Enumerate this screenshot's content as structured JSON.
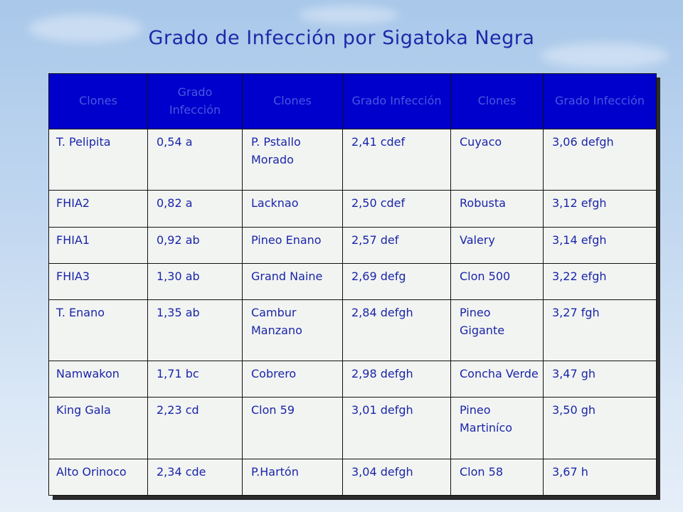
{
  "title": "Grado de Infección por Sigatoka Negra",
  "table": {
    "headers": [
      "Clones",
      "Grado Infección",
      "Clones",
      "Grado Infección",
      "Clones",
      "Grado Infección"
    ],
    "rows": [
      [
        "T. Pelipita",
        "0,54 a",
        "P. Pstallo Morado",
        "2,41 cdef",
        "Cuyaco",
        "3,06 defgh"
      ],
      [
        "FHIA2",
        "0,82 a",
        "Lacknao",
        "2,50 cdef",
        "Robusta",
        "3,12 efgh"
      ],
      [
        "FHIA1",
        "0,92 ab",
        "Pineo Enano",
        "2,57 def",
        "Valery",
        "3,14 efgh"
      ],
      [
        "FHIA3",
        "1,30 ab",
        "Grand Naine",
        "2,69 defg",
        "Clon 500",
        "3,22 efgh"
      ],
      [
        "T. Enano",
        "1,35 ab",
        "Cambur Manzano",
        "2,84 defgh",
        "Pineo Gigante",
        "3,27 fgh"
      ],
      [
        "Namwakon",
        "1,71 bc",
        "Cobrero",
        "2,98 defgh",
        "Concha Verde",
        "3,47 gh"
      ],
      [
        "King Gala",
        "2,23 cd",
        "Clon 59",
        "3,01 defgh",
        "Pineo Martiníco",
        "3,50 gh"
      ],
      [
        "Alto Orinoco",
        "2,34 cde",
        "P.Hartón",
        "3,04 defgh",
        "Clon 58",
        "3,67 h"
      ]
    ]
  }
}
